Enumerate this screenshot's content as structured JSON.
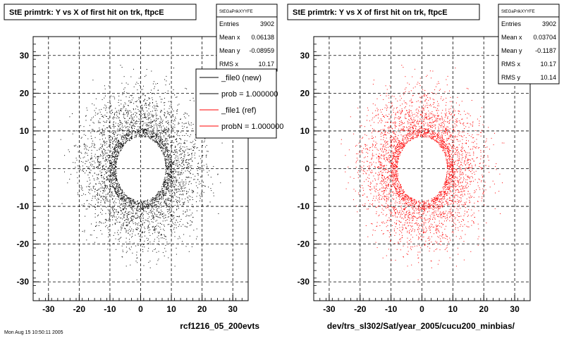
{
  "chart_data": [
    {
      "type": "scatter",
      "title": "StE primtrk: Y vs X of first hit on trk, ftpcE",
      "xlim": [
        -35,
        35
      ],
      "ylim": [
        -35,
        35
      ],
      "xticks": [
        -30,
        -20,
        -10,
        0,
        10,
        20,
        30
      ],
      "yticks": [
        -30,
        -20,
        -10,
        0,
        10,
        20,
        30
      ],
      "grid": true,
      "marker_color": "#000000",
      "stats": {
        "header": "StEGaPrikXYYFE",
        "rows": [
          {
            "label": "Entries",
            "value": "3902"
          },
          {
            "label": "Mean x",
            "value": "0.06138"
          },
          {
            "label": "Mean y",
            "value": "-0.08959"
          },
          {
            "label": "RMS x",
            "value": "10.17"
          }
        ]
      },
      "legend": {
        "placement": "top-right",
        "entries": [
          {
            "label": "_file0 (new)",
            "color": "#000000"
          },
          {
            "label": "prob = 1.000000",
            "color": "#000000"
          },
          {
            "label": "_file1 (ref)",
            "color": "#ff0000"
          },
          {
            "label": "probN = 1.000000",
            "color": "#ff0000"
          }
        ]
      },
      "distribution": {
        "ring_inner_radius": 8,
        "entries": 3902
      },
      "footer": "rcf1216_05_200evts"
    },
    {
      "type": "scatter",
      "title": "StE primtrk: Y vs X of first hit on trk, ftpcE",
      "xlim": [
        -35,
        35
      ],
      "ylim": [
        -35,
        35
      ],
      "xticks": [
        -30,
        -20,
        -10,
        0,
        10,
        20,
        30
      ],
      "yticks": [
        -30,
        -20,
        -10,
        0,
        10,
        20,
        30
      ],
      "grid": true,
      "marker_color": "#ff0000",
      "stats": {
        "header": "StEGaPrikXYYFE",
        "rows": [
          {
            "label": "Entries",
            "value": "3902"
          },
          {
            "label": "Mean x",
            "value": "0.03704"
          },
          {
            "label": "Mean y",
            "value": "-0.1187"
          },
          {
            "label": "RMS x",
            "value": "10.17"
          },
          {
            "label": "RMS y",
            "value": "10.14"
          }
        ]
      },
      "distribution": {
        "ring_inner_radius": 8,
        "entries": 3902
      },
      "footer": "dev/trs_sl302/Sat/year_2005/cucu200_minbias/"
    }
  ],
  "page": {
    "timestamp": "Mon Aug 15 10:50:11 2005"
  }
}
